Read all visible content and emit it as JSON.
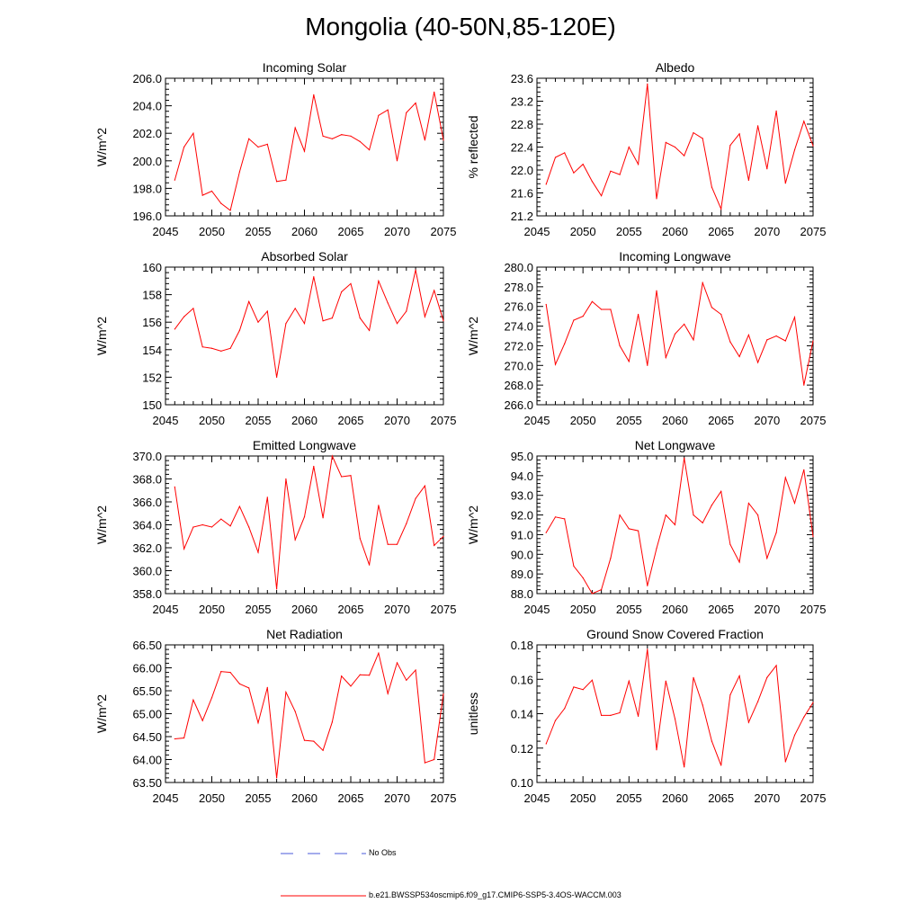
{
  "title": "Mongolia (40-50N,85-120E)",
  "colors": {
    "series": "#ff0000",
    "obs": "#4a5ad8",
    "axis": "#000000"
  },
  "legend": {
    "obs_label": "No Obs",
    "model_label": "b.e21.BWSSP534oscmip6.f09_g17.CMIP6-SSP5-3.4OS-WACCM.003"
  },
  "chart_data": [
    {
      "type": "line",
      "title": "Incoming Solar",
      "xlabel": "",
      "ylabel": "W/m^2",
      "xlim": [
        2045,
        2075
      ],
      "ylim": [
        196,
        206
      ],
      "xticks": [
        2045,
        2050,
        2055,
        2060,
        2065,
        2070,
        2075
      ],
      "yticks": [
        "196.0",
        "198.0",
        "200.0",
        "202.0",
        "204.0",
        "206.0"
      ],
      "x": [
        2046,
        2047,
        2048,
        2049,
        2050,
        2051,
        2052,
        2053,
        2054,
        2055,
        2056,
        2057,
        2058,
        2059,
        2060,
        2061,
        2062,
        2063,
        2064,
        2065,
        2066,
        2067,
        2068,
        2069,
        2070,
        2071,
        2072,
        2073,
        2074,
        2075
      ],
      "values": [
        198.6,
        201.0,
        202.0,
        197.5,
        197.8,
        196.9,
        196.4,
        199.2,
        201.6,
        201.0,
        201.2,
        198.5,
        198.6,
        202.4,
        200.7,
        204.8,
        201.8,
        201.6,
        201.9,
        201.8,
        201.4,
        200.8,
        203.3,
        203.7,
        200.0,
        203.5,
        204.2,
        201.5,
        205.0,
        201.5
      ]
    },
    {
      "type": "line",
      "title": "Albedo",
      "xlabel": "",
      "ylabel": "% reflected",
      "xlim": [
        2045,
        2075
      ],
      "ylim": [
        21.2,
        23.6
      ],
      "xticks": [
        2045,
        2050,
        2055,
        2060,
        2065,
        2070,
        2075
      ],
      "yticks": [
        "21.2",
        "21.6",
        "22.0",
        "22.4",
        "22.8",
        "23.2",
        "23.6"
      ],
      "x": [
        2046,
        2047,
        2048,
        2049,
        2050,
        2051,
        2052,
        2053,
        2054,
        2055,
        2056,
        2057,
        2058,
        2059,
        2060,
        2061,
        2062,
        2063,
        2064,
        2065,
        2066,
        2067,
        2068,
        2069,
        2070,
        2071,
        2072,
        2073,
        2074,
        2075
      ],
      "values": [
        21.75,
        22.22,
        22.3,
        21.95,
        22.1,
        21.8,
        21.55,
        21.98,
        21.92,
        22.4,
        22.1,
        23.5,
        21.5,
        22.48,
        22.4,
        22.25,
        22.65,
        22.55,
        21.7,
        21.32,
        22.43,
        22.63,
        21.82,
        22.77,
        22.02,
        23.03,
        21.77,
        22.35,
        22.85,
        22.42
      ]
    },
    {
      "type": "line",
      "title": "Absorbed Solar",
      "xlabel": "",
      "ylabel": "W/m^2",
      "xlim": [
        2045,
        2075
      ],
      "ylim": [
        150,
        160
      ],
      "xticks": [
        2045,
        2050,
        2055,
        2060,
        2065,
        2070,
        2075
      ],
      "yticks": [
        "150",
        "152",
        "154",
        "156",
        "158",
        "160"
      ],
      "x": [
        2046,
        2047,
        2048,
        2049,
        2050,
        2051,
        2052,
        2053,
        2054,
        2055,
        2056,
        2057,
        2058,
        2059,
        2060,
        2061,
        2062,
        2063,
        2064,
        2065,
        2066,
        2067,
        2068,
        2069,
        2070,
        2071,
        2072,
        2073,
        2074,
        2075
      ],
      "values": [
        155.5,
        156.4,
        157.0,
        154.2,
        154.1,
        153.9,
        154.1,
        155.4,
        157.5,
        156.0,
        156.8,
        152.0,
        155.9,
        157.0,
        155.9,
        159.3,
        156.1,
        156.3,
        158.2,
        158.8,
        156.3,
        155.4,
        159.0,
        157.4,
        155.9,
        156.8,
        159.8,
        156.4,
        158.3,
        156.1
      ]
    },
    {
      "type": "line",
      "title": "Incoming Longwave",
      "xlabel": "",
      "ylabel": "W/m^2",
      "xlim": [
        2045,
        2075
      ],
      "ylim": [
        266,
        280
      ],
      "xticks": [
        2045,
        2050,
        2055,
        2060,
        2065,
        2070,
        2075
      ],
      "yticks": [
        "266.0",
        "268.0",
        "270.0",
        "272.0",
        "274.0",
        "276.0",
        "278.0",
        "280.0"
      ],
      "x": [
        2046,
        2047,
        2048,
        2049,
        2050,
        2051,
        2052,
        2053,
        2054,
        2055,
        2056,
        2057,
        2058,
        2059,
        2060,
        2061,
        2062,
        2063,
        2064,
        2065,
        2066,
        2067,
        2068,
        2069,
        2070,
        2071,
        2072,
        2073,
        2074,
        2075
      ],
      "values": [
        276.2,
        270.1,
        272.2,
        274.6,
        275.0,
        276.5,
        275.7,
        275.7,
        272.0,
        270.4,
        275.2,
        270.0,
        277.6,
        270.8,
        273.2,
        274.2,
        272.6,
        278.4,
        275.9,
        275.2,
        272.4,
        270.9,
        273.1,
        270.3,
        272.6,
        273.0,
        272.5,
        274.9,
        268.0,
        272.5
      ]
    },
    {
      "type": "line",
      "title": "Emitted Longwave",
      "xlabel": "",
      "ylabel": "W/m^2",
      "xlim": [
        2045,
        2075
      ],
      "ylim": [
        358,
        370
      ],
      "xticks": [
        2045,
        2050,
        2055,
        2060,
        2065,
        2070,
        2075
      ],
      "yticks": [
        "358.0",
        "360.0",
        "362.0",
        "364.0",
        "366.0",
        "368.0",
        "370.0"
      ],
      "x": [
        2046,
        2047,
        2048,
        2049,
        2050,
        2051,
        2052,
        2053,
        2054,
        2055,
        2056,
        2057,
        2058,
        2059,
        2060,
        2061,
        2062,
        2063,
        2064,
        2065,
        2066,
        2067,
        2068,
        2069,
        2070,
        2071,
        2072,
        2073,
        2074,
        2075
      ],
      "values": [
        367.3,
        361.9,
        363.8,
        364.0,
        363.8,
        364.5,
        363.9,
        365.6,
        363.8,
        361.6,
        366.4,
        358.4,
        368.0,
        362.7,
        364.7,
        369.1,
        364.6,
        370.0,
        368.2,
        368.3,
        362.8,
        360.5,
        365.7,
        362.3,
        362.3,
        364.1,
        366.3,
        367.4,
        362.2,
        363.0
      ]
    },
    {
      "type": "line",
      "title": "Net Longwave",
      "xlabel": "",
      "ylabel": "W/m^2",
      "xlim": [
        2045,
        2075
      ],
      "ylim": [
        88,
        95
      ],
      "xticks": [
        2045,
        2050,
        2055,
        2060,
        2065,
        2070,
        2075
      ],
      "yticks": [
        "88.0",
        "89.0",
        "90.0",
        "91.0",
        "92.0",
        "93.0",
        "94.0",
        "95.0"
      ],
      "x": [
        2046,
        2047,
        2048,
        2049,
        2050,
        2051,
        2052,
        2053,
        2054,
        2055,
        2056,
        2057,
        2058,
        2059,
        2060,
        2061,
        2062,
        2063,
        2064,
        2065,
        2066,
        2067,
        2068,
        2069,
        2070,
        2071,
        2072,
        2073,
        2074,
        2075
      ],
      "values": [
        91.1,
        91.9,
        91.8,
        89.4,
        88.8,
        88.0,
        88.2,
        89.8,
        92.0,
        91.3,
        91.2,
        88.4,
        90.3,
        92.0,
        91.5,
        94.9,
        92.0,
        91.6,
        92.5,
        93.2,
        90.5,
        89.6,
        92.6,
        92.0,
        89.8,
        91.1,
        93.9,
        92.6,
        94.3,
        90.9
      ]
    },
    {
      "type": "line",
      "title": "Net Radiation",
      "xlabel": "",
      "ylabel": "W/m^2",
      "xlim": [
        2045,
        2075
      ],
      "ylim": [
        63.5,
        66.5
      ],
      "xticks": [
        2045,
        2050,
        2055,
        2060,
        2065,
        2070,
        2075
      ],
      "yticks": [
        "63.50",
        "64.00",
        "64.50",
        "65.00",
        "65.50",
        "66.00",
        "66.50"
      ],
      "x": [
        2046,
        2047,
        2048,
        2049,
        2050,
        2051,
        2052,
        2053,
        2054,
        2055,
        2056,
        2057,
        2058,
        2059,
        2060,
        2061,
        2062,
        2063,
        2064,
        2065,
        2066,
        2067,
        2068,
        2069,
        2070,
        2071,
        2072,
        2073,
        2074,
        2075
      ],
      "values": [
        64.45,
        64.47,
        65.3,
        64.85,
        65.35,
        65.92,
        65.9,
        65.65,
        65.56,
        64.8,
        65.57,
        63.6,
        65.47,
        65.05,
        64.42,
        64.4,
        64.2,
        64.82,
        65.82,
        65.6,
        65.85,
        65.84,
        66.32,
        65.44,
        66.11,
        65.73,
        65.95,
        63.93,
        64.0,
        65.43
      ]
    },
    {
      "type": "line",
      "title": "Ground Snow Covered Fraction",
      "xlabel": "",
      "ylabel": "unitless",
      "xlim": [
        2045,
        2075
      ],
      "ylim": [
        0.1,
        0.18
      ],
      "xticks": [
        2045,
        2050,
        2055,
        2060,
        2065,
        2070,
        2075
      ],
      "yticks": [
        "0.10",
        "0.12",
        "0.14",
        "0.16",
        "0.18"
      ],
      "x": [
        2046,
        2047,
        2048,
        2049,
        2050,
        2051,
        2052,
        2053,
        2054,
        2055,
        2056,
        2057,
        2058,
        2059,
        2060,
        2061,
        2062,
        2063,
        2064,
        2065,
        2066,
        2067,
        2068,
        2069,
        2070,
        2071,
        2072,
        2073,
        2074,
        2075
      ],
      "values": [
        0.1225,
        0.136,
        0.143,
        0.1555,
        0.154,
        0.1595,
        0.139,
        0.139,
        0.1405,
        0.159,
        0.1385,
        0.1775,
        0.119,
        0.159,
        0.137,
        0.109,
        0.161,
        0.145,
        0.124,
        0.11,
        0.151,
        0.162,
        0.135,
        0.147,
        0.161,
        0.168,
        0.112,
        0.1275,
        0.138,
        0.1465
      ]
    }
  ]
}
